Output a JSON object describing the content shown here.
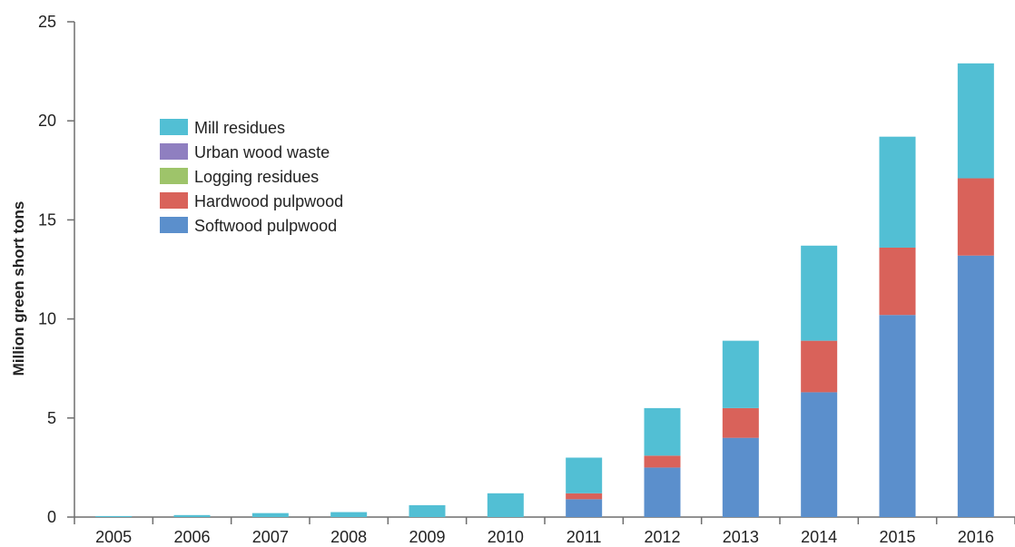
{
  "chart_data": {
    "type": "bar",
    "stacked": true,
    "title": "",
    "xlabel": "",
    "ylabel": "Million green short tons",
    "ylim": [
      0,
      25
    ],
    "yticks": [
      0,
      5,
      10,
      15,
      20,
      25
    ],
    "grid": false,
    "legend_position": "top-left",
    "categories": [
      "2005",
      "2006",
      "2007",
      "2008",
      "2009",
      "2010",
      "2011",
      "2012",
      "2013",
      "2014",
      "2015",
      "2016"
    ],
    "series": [
      {
        "name": "Softwood pulpwood",
        "color": "#5b8fcc",
        "values": [
          0,
          0,
          0,
          0,
          0,
          0,
          0.9,
          2.5,
          4.0,
          6.3,
          10.2,
          13.2
        ]
      },
      {
        "name": "Hardwood pulpwood",
        "color": "#d9625a",
        "values": [
          0,
          0,
          0,
          0,
          0,
          0,
          0.3,
          0.6,
          1.5,
          2.6,
          3.4,
          3.9
        ]
      },
      {
        "name": "Logging residues",
        "color": "#9ec46a",
        "values": [
          0,
          0,
          0,
          0,
          0,
          0,
          0,
          0,
          0,
          0,
          0,
          0
        ]
      },
      {
        "name": "Urban wood waste",
        "color": "#8f7fc0",
        "values": [
          0,
          0,
          0,
          0,
          0,
          0,
          0,
          0,
          0,
          0,
          0,
          0
        ]
      },
      {
        "name": "Mill residues",
        "color": "#52bfd4",
        "values": [
          0.05,
          0.1,
          0.2,
          0.25,
          0.6,
          1.2,
          1.8,
          2.4,
          3.4,
          4.8,
          5.6,
          5.8
        ]
      }
    ],
    "legend_order": [
      "Mill residues",
      "Urban wood waste",
      "Logging residues",
      "Hardwood pulpwood",
      "Softwood pulpwood"
    ]
  }
}
